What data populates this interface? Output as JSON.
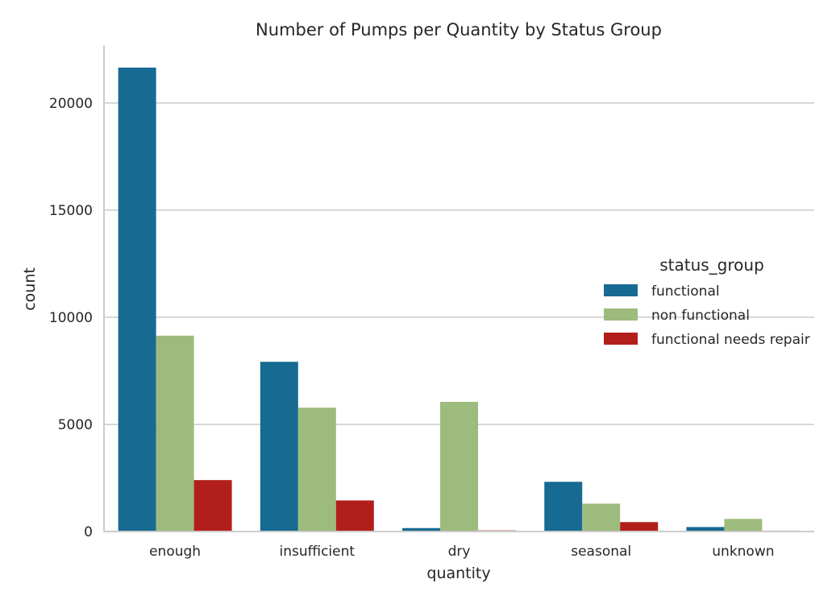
{
  "chart_data": {
    "type": "bar",
    "title": "Number of Pumps per Quantity by Status Group",
    "xlabel": "quantity",
    "ylabel": "count",
    "categories": [
      "enough",
      "insufficient",
      "dry",
      "seasonal",
      "unknown"
    ],
    "series": [
      {
        "name": "functional",
        "color": "#176a91",
        "values": [
          21650,
          7920,
          160,
          2320,
          210
        ]
      },
      {
        "name": "non functional",
        "color": "#9ebb7e",
        "values": [
          9140,
          5780,
          6050,
          1300,
          590
        ]
      },
      {
        "name": "functional needs repair",
        "color": "#b21f1b",
        "values": [
          2400,
          1450,
          50,
          440,
          40
        ]
      }
    ],
    "ylim": [
      0,
      22700
    ],
    "yticks": [
      0,
      5000,
      10000,
      15000,
      20000
    ],
    "grid": true,
    "legend": {
      "title": "status_group",
      "position": "center-right"
    }
  }
}
